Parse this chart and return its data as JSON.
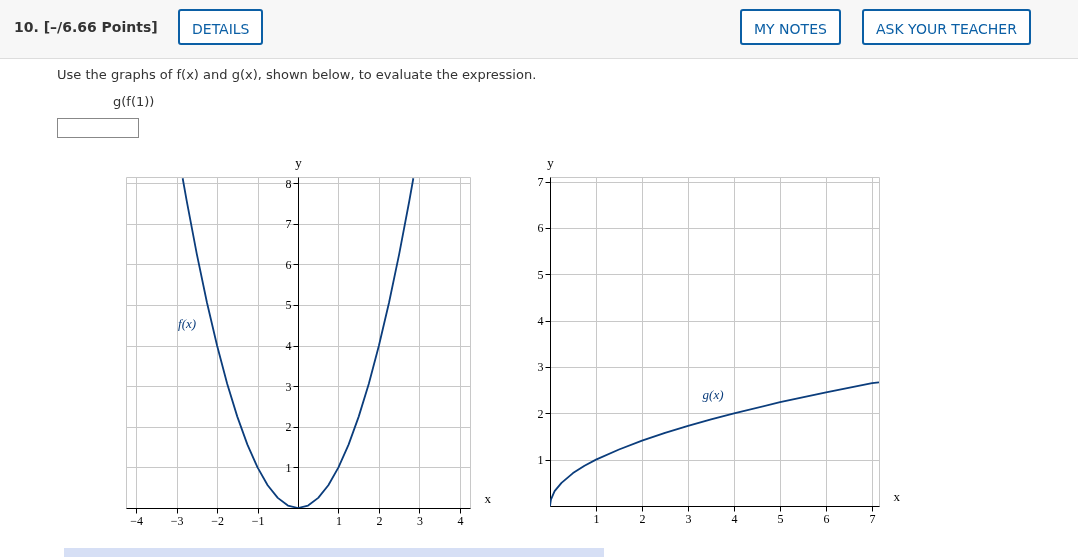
{
  "chart_data": [
    {
      "type": "line",
      "title": "Use the graphs of f(x) and g(x), shown below, to evaluate the expression.",
      "subtitle": "g(f(1))",
      "xlabel": "x",
      "ylabel": "y",
      "annotations": [
        "10. [–/6.66 Points]",
        "DETAILS",
        "MY NOTES",
        "ASK YOUR TEACHER"
      ],
      "series": [
        {
          "name": "f(x)",
          "color": "#0b3d7c",
          "x": [
            -2.85,
            -2.75,
            -2.5,
            -2.25,
            -2,
            -1.75,
            -1.5,
            -1.25,
            -1,
            -0.75,
            -0.5,
            -0.25,
            0,
            0.25,
            0.5,
            0.75,
            1,
            1.25,
            1.5,
            1.75,
            2,
            2.25,
            2.5,
            2.75,
            2.85
          ],
          "values": [
            8.12,
            7.56,
            6.25,
            5.06,
            4,
            3.06,
            2.25,
            1.56,
            1,
            0.56,
            0.25,
            0.06,
            0,
            0.06,
            0.25,
            0.56,
            1,
            1.56,
            2.25,
            3.06,
            4,
            5.06,
            6.25,
            7.56,
            8.12
          ]
        }
      ],
      "xlim": [
        -4.25,
        4.25
      ],
      "ylim": [
        0,
        8.15
      ],
      "xticks": [
        -4,
        -3,
        -2,
        -1,
        1,
        2,
        3,
        4
      ],
      "yticks": [
        1,
        2,
        3,
        4,
        5,
        6,
        7,
        8
      ],
      "grid": true
    },
    {
      "type": "line",
      "xlabel": "x",
      "ylabel": "y",
      "series": [
        {
          "name": "g(x)",
          "color": "#0b3d7c",
          "x": [
            0,
            0.02,
            0.1,
            0.25,
            0.5,
            0.75,
            1,
            1.5,
            2,
            2.5,
            3,
            3.5,
            4,
            5,
            6,
            7,
            7.15
          ],
          "values": [
            0,
            0.14,
            0.32,
            0.5,
            0.71,
            0.87,
            1,
            1.22,
            1.41,
            1.58,
            1.73,
            1.87,
            2,
            2.24,
            2.45,
            2.65,
            2.67
          ]
        }
      ],
      "xlim": [
        0,
        7.15
      ],
      "ylim": [
        0,
        7.1
      ],
      "xticks": [
        1,
        2,
        3,
        4,
        5,
        6,
        7
      ],
      "yticks": [
        1,
        2,
        3,
        4,
        5,
        6,
        7
      ],
      "grid": true
    }
  ]
}
